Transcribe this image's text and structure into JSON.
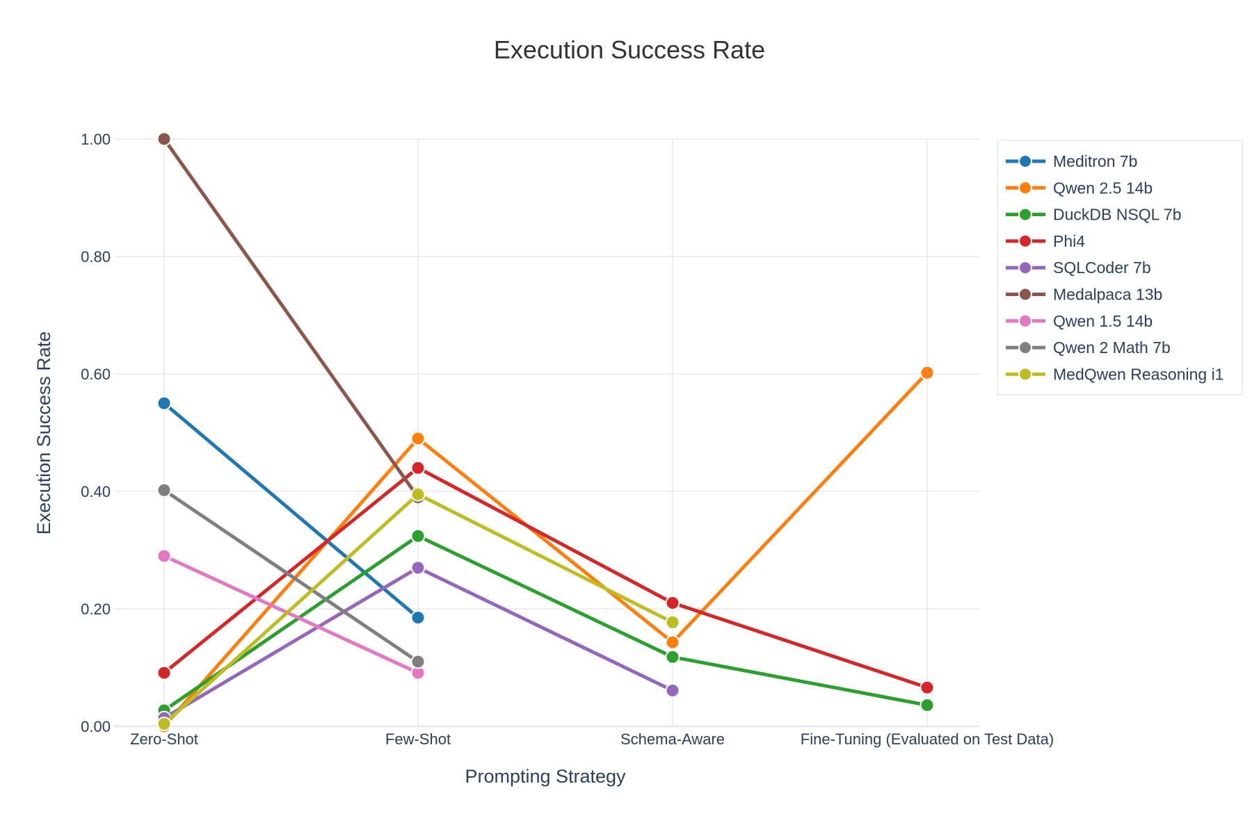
{
  "chart_data": {
    "type": "line",
    "title": "Execution Success Rate",
    "xlabel": "Prompting Strategy",
    "ylabel": "Execution Success Rate",
    "ylim": [
      0,
      1
    ],
    "yticks": [
      "0.00",
      "0.20",
      "0.40",
      "0.60",
      "0.80",
      "1.00"
    ],
    "ytick_values": [
      0,
      0.2,
      0.4,
      0.6,
      0.8,
      1.0
    ],
    "grid": true,
    "legend_position": "top-right",
    "categories": [
      "Zero-Shot",
      "Few-Shot",
      "Schema-Aware",
      "Fine-Tuning (Evaluated on Test Data)"
    ],
    "series": [
      {
        "name": "Meditron 7b",
        "color": "#1f77b4",
        "values": [
          0.55,
          0.185,
          null,
          null
        ]
      },
      {
        "name": "Qwen 2.5 14b",
        "color": "#ff7f0e",
        "values": [
          0.0,
          0.49,
          0.143,
          0.602
        ]
      },
      {
        "name": "DuckDB NSQL 7b",
        "color": "#2ca02c",
        "values": [
          0.027,
          0.324,
          0.118,
          0.036
        ]
      },
      {
        "name": "Phi4",
        "color": "#d62728",
        "values": [
          0.091,
          0.44,
          0.21,
          0.066
        ]
      },
      {
        "name": "SQLCoder 7b",
        "color": "#9467bd",
        "values": [
          0.014,
          0.27,
          0.061,
          null
        ]
      },
      {
        "name": "Medalpaca 13b",
        "color": "#8c564b",
        "values": [
          1.0,
          0.39,
          null,
          null
        ]
      },
      {
        "name": "Qwen 1.5 14b",
        "color": "#e377c2",
        "values": [
          0.29,
          0.091,
          null,
          null
        ]
      },
      {
        "name": "Qwen 2 Math 7b",
        "color": "#7f7f7f",
        "values": [
          0.402,
          0.11,
          null,
          null
        ]
      },
      {
        "name": "MedQwen Reasoning i1",
        "color": "#bcbd22",
        "values": [
          0.004,
          0.395,
          0.177,
          null
        ]
      }
    ]
  }
}
